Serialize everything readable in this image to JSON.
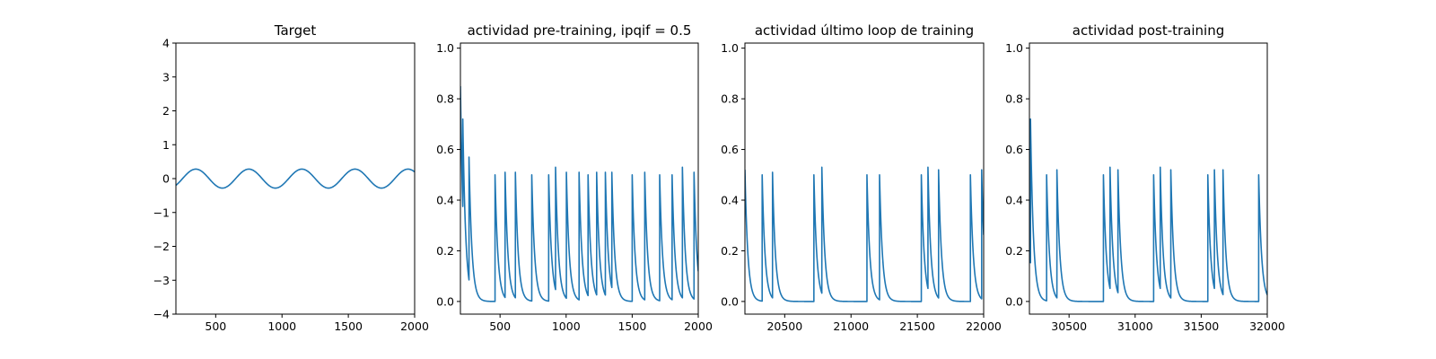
{
  "colors": {
    "series": "#1f77b4",
    "axes": "#000000",
    "background": "#ffffff"
  },
  "chart_data": [
    {
      "type": "line",
      "title": "Target",
      "xlabel": "",
      "ylabel": "",
      "xlim": [
        200,
        2000
      ],
      "ylim": [
        -4,
        4
      ],
      "xticks": [
        500,
        1000,
        1500,
        2000
      ],
      "yticks": [
        -4,
        -3,
        -2,
        -1,
        0,
        1,
        2,
        3,
        4
      ],
      "grid": false,
      "series": [
        {
          "kind": "sine",
          "amplitude": 0.28,
          "period": 400,
          "phase_x": 250,
          "x_start": 200,
          "x_end": 2000
        }
      ]
    },
    {
      "type": "line",
      "title": "actividad pre-training, ipqif = 0.5",
      "xlabel": "",
      "ylabel": "",
      "xlim": [
        200,
        2000
      ],
      "ylim": [
        -0.05,
        1.02
      ],
      "xticks": [
        500,
        1000,
        1500,
        2000
      ],
      "yticks": [
        0.0,
        0.2,
        0.4,
        0.6,
        0.8,
        1.0
      ],
      "grid": false,
      "series": [
        {
          "kind": "spikes",
          "start_value": 0.85,
          "decay": 22,
          "spikes": [
            {
              "x": 218,
              "y": 0.72
            },
            {
              "x": 265,
              "y": 0.57
            },
            {
              "x": 462,
              "y": 0.5
            },
            {
              "x": 538,
              "y": 0.51
            },
            {
              "x": 616,
              "y": 0.51
            },
            {
              "x": 740,
              "y": 0.5
            },
            {
              "x": 868,
              "y": 0.5
            },
            {
              "x": 920,
              "y": 0.53
            },
            {
              "x": 1002,
              "y": 0.51
            },
            {
              "x": 1098,
              "y": 0.51
            },
            {
              "x": 1166,
              "y": 0.5
            },
            {
              "x": 1231,
              "y": 0.51
            },
            {
              "x": 1297,
              "y": 0.51
            },
            {
              "x": 1346,
              "y": 0.51
            },
            {
              "x": 1500,
              "y": 0.5
            },
            {
              "x": 1595,
              "y": 0.51
            },
            {
              "x": 1708,
              "y": 0.5
            },
            {
              "x": 1802,
              "y": 0.5
            },
            {
              "x": 1880,
              "y": 0.53
            },
            {
              "x": 1968,
              "y": 0.51
            }
          ]
        }
      ]
    },
    {
      "type": "line",
      "title": "actividad último loop de training",
      "xlabel": "",
      "ylabel": "",
      "xlim": [
        20200,
        22000
      ],
      "ylim": [
        -0.05,
        1.02
      ],
      "xticks": [
        20500,
        21000,
        21500,
        22000
      ],
      "yticks": [
        0.0,
        0.2,
        0.4,
        0.6,
        0.8,
        1.0
      ],
      "grid": false,
      "series": [
        {
          "kind": "spikes",
          "start_value": 0.52,
          "decay": 22,
          "spikes": [
            {
              "x": 20330,
              "y": 0.5
            },
            {
              "x": 20408,
              "y": 0.51
            },
            {
              "x": 20720,
              "y": 0.5
            },
            {
              "x": 20780,
              "y": 0.53
            },
            {
              "x": 21120,
              "y": 0.5
            },
            {
              "x": 21215,
              "y": 0.5
            },
            {
              "x": 21530,
              "y": 0.5
            },
            {
              "x": 21580,
              "y": 0.53
            },
            {
              "x": 21660,
              "y": 0.52
            },
            {
              "x": 21900,
              "y": 0.5
            },
            {
              "x": 21985,
              "y": 0.52
            }
          ]
        }
      ]
    },
    {
      "type": "line",
      "title": "actividad post-training",
      "xlabel": "",
      "ylabel": "",
      "xlim": [
        30200,
        32000
      ],
      "ylim": [
        -0.05,
        1.02
      ],
      "xticks": [
        30500,
        31000,
        31500,
        32000
      ],
      "yticks": [
        0.0,
        0.2,
        0.4,
        0.6,
        0.8,
        1.0
      ],
      "grid": false,
      "series": [
        {
          "kind": "spikes",
          "start_value": 0.22,
          "decay": 22,
          "spikes": [
            {
              "x": 30208,
              "y": 0.72
            },
            {
              "x": 30330,
              "y": 0.5
            },
            {
              "x": 30408,
              "y": 0.52
            },
            {
              "x": 30760,
              "y": 0.5
            },
            {
              "x": 30810,
              "y": 0.53
            },
            {
              "x": 30870,
              "y": 0.52
            },
            {
              "x": 31140,
              "y": 0.5
            },
            {
              "x": 31190,
              "y": 0.53
            },
            {
              "x": 31270,
              "y": 0.52
            },
            {
              "x": 31550,
              "y": 0.5
            },
            {
              "x": 31600,
              "y": 0.52
            },
            {
              "x": 31665,
              "y": 0.52
            },
            {
              "x": 31935,
              "y": 0.5
            }
          ]
        }
      ]
    }
  ]
}
